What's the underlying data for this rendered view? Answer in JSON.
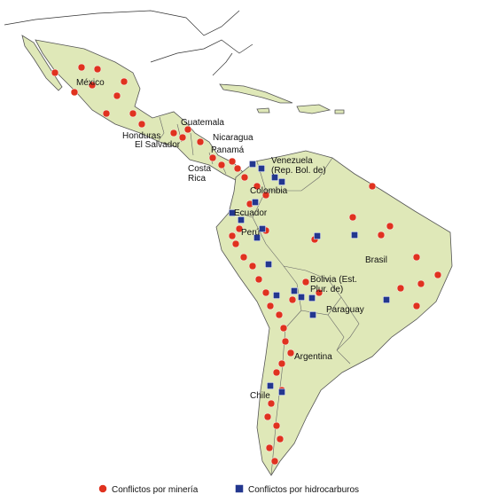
{
  "map": {
    "labels": [
      {
        "lines": [
          "México"
        ]
      },
      {
        "lines": [
          "Guatemala"
        ]
      },
      {
        "lines": [
          "Honduras"
        ]
      },
      {
        "lines": [
          "El Salvador"
        ]
      },
      {
        "lines": [
          "Nicaragua"
        ]
      },
      {
        "lines": [
          "Panamá"
        ]
      },
      {
        "lines": [
          "Costa",
          "Rica"
        ]
      },
      {
        "lines": [
          "Venezuela",
          "(Rep. Bol. de)"
        ]
      },
      {
        "lines": [
          "Colombia"
        ]
      },
      {
        "lines": [
          "Ecuador"
        ]
      },
      {
        "lines": [
          "Perú"
        ]
      },
      {
        "lines": [
          "Brasil"
        ]
      },
      {
        "lines": [
          "Bolivia (Est.",
          "Plur. de)"
        ]
      },
      {
        "lines": [
          "Paraguay"
        ]
      },
      {
        "lines": [
          "Argentina"
        ]
      },
      {
        "lines": [
          "Chile"
        ]
      }
    ],
    "legend": [
      {
        "label": "Conflictos por minería",
        "color": "#e0321f",
        "shape": "circle"
      },
      {
        "label": "Conflictos por hidrocarburos",
        "color": "#23378f",
        "shape": "square"
      }
    ]
  }
}
